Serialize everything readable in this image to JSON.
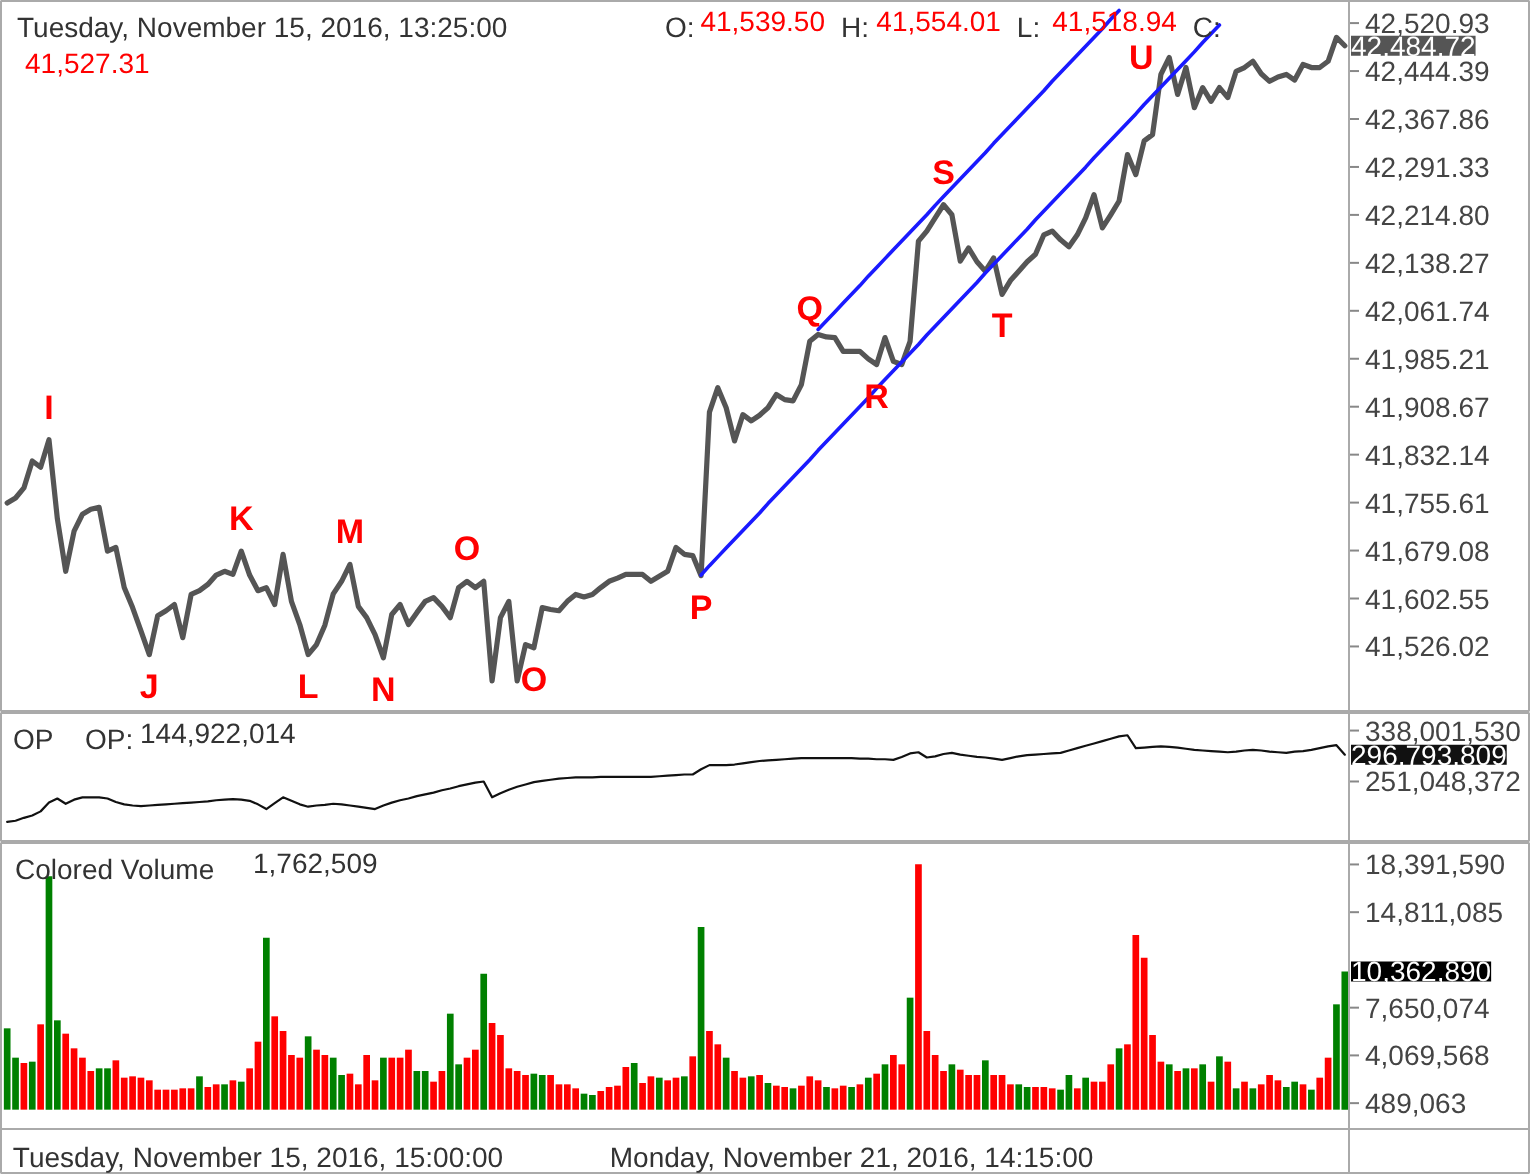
{
  "chart_data": [
    {
      "type": "line",
      "title": "Tuesday, November 15, 2016, 13:25:00",
      "annotations": [
        "O: 41,539.50",
        "H: 41,554.01",
        "L: 41,518.94",
        "C: 41,527.31"
      ],
      "categories": [
        null,
        null,
        null,
        null,
        null,
        null,
        null,
        null,
        null,
        null,
        null,
        null,
        null,
        null,
        null,
        null,
        null,
        null,
        null,
        null,
        null,
        null,
        null,
        null,
        null,
        null,
        null,
        null,
        null,
        null,
        null,
        null,
        null,
        null,
        null,
        null,
        null,
        null,
        null,
        null,
        null,
        null,
        null,
        null,
        null,
        null,
        null,
        null,
        null,
        null,
        null,
        null,
        null,
        null,
        null,
        null,
        null,
        null,
        null,
        null,
        null,
        null,
        null,
        null,
        null,
        null,
        null,
        null,
        null,
        null,
        null,
        null,
        null,
        null,
        null,
        null,
        null,
        null,
        null,
        null,
        null,
        null,
        null,
        null,
        null,
        null,
        null,
        null,
        null,
        null,
        null,
        null,
        null,
        null,
        null,
        null,
        null,
        null,
        null,
        null,
        null,
        null,
        null,
        null,
        null,
        null,
        null,
        null,
        null,
        null,
        null,
        null,
        null,
        null,
        null,
        null,
        null,
        null,
        null,
        null,
        null,
        null,
        null,
        null,
        null,
        null,
        null,
        null,
        null,
        null,
        null,
        null,
        null,
        null,
        null,
        null,
        null,
        null,
        null,
        null,
        null,
        null,
        null,
        null,
        null,
        null,
        null,
        null,
        null,
        null,
        null,
        null,
        null,
        null,
        null,
        null,
        null,
        null,
        null,
        null,
        null
      ],
      "series": [
        {
          "color": "#555555",
          "values": [
            41755,
            41763,
            41779,
            41822,
            41812,
            41856,
            41730,
            41646,
            41710,
            41737,
            41745,
            41748,
            41678,
            41684,
            41620,
            41588,
            41551,
            41513,
            41575,
            41583,
            41593,
            41540,
            41609,
            41615,
            41625,
            41640,
            41646,
            41641,
            41678,
            41640,
            41615,
            41620,
            41593,
            41673,
            41598,
            41561,
            41513,
            41529,
            41560,
            41610,
            41630,
            41657,
            41590,
            41572,
            41545,
            41508,
            41577,
            41593,
            41561,
            41580,
            41598,
            41604,
            41590,
            41572,
            41620,
            41630,
            41620,
            41630,
            41471,
            41572,
            41598,
            41471,
            41529,
            41524,
            41588,
            41585,
            41583,
            41598,
            41609,
            41605,
            41609,
            41620,
            41630,
            41635,
            41641,
            41641,
            41641,
            41630,
            41638,
            41646,
            41684,
            41673,
            41671,
            41639,
            41900,
            41939,
            41907,
            41854,
            41896,
            41886,
            41895,
            41907,
            41928,
            41920,
            41918,
            41944,
            42013,
            42024,
            42020,
            42019,
            41997,
            41997,
            41997,
            41985,
            41976,
            42019,
            41981,
            41976,
            42013,
            42173,
            42189,
            42210,
            42231,
            42215,
            42141,
            42162,
            42140,
            42125,
            42146,
            42088,
            42110,
            42125,
            42140,
            42152,
            42183,
            42189,
            42175,
            42164,
            42183,
            42210,
            42247,
            42194,
            42215,
            42237,
            42311,
            42279,
            42333,
            42343,
            42439,
            42466,
            42407,
            42450,
            42386,
            42418,
            42396,
            42418,
            42402,
            42444,
            42450,
            42460,
            42440,
            42428,
            42435,
            42439,
            42430,
            42455,
            42450,
            42450,
            42460,
            42498,
            42484.72
          ],
          "value_labels": [
            null,
            null,
            null,
            null,
            null,
            "I",
            null,
            null,
            null,
            null,
            null,
            null,
            null,
            null,
            null,
            null,
            null,
            "J",
            null,
            null,
            null,
            null,
            null,
            null,
            null,
            null,
            null,
            null,
            "K",
            null,
            null,
            null,
            null,
            null,
            null,
            null,
            "L",
            null,
            null,
            null,
            null,
            "M",
            null,
            null,
            null,
            "N",
            null,
            null,
            null,
            null,
            null,
            null,
            null,
            null,
            null,
            "O",
            null,
            null,
            null,
            null,
            null,
            null,
            null,
            "O",
            null,
            null,
            null,
            null,
            null,
            null,
            null,
            null,
            null,
            null,
            null,
            null,
            null,
            null,
            null,
            null,
            null,
            null,
            null,
            "P",
            null,
            null,
            null,
            null,
            null,
            null,
            null,
            null,
            null,
            null,
            null,
            null,
            "Q",
            null,
            null,
            null,
            null,
            null,
            null,
            null,
            "R",
            null,
            null,
            null,
            null,
            null,
            null,
            null,
            "S",
            null,
            null,
            null,
            null,
            null,
            null,
            "T",
            null,
            null,
            null,
            null,
            null,
            null,
            null,
            null,
            null,
            null,
            null,
            null,
            null,
            null,
            null,
            null,
            null,
            null,
            null,
            "U",
            null,
            null,
            null,
            null,
            null,
            null,
            null,
            null,
            null,
            null,
            null,
            null,
            null,
            null,
            null,
            null,
            null,
            null,
            null,
            null,
            "42,484.72"
          ]
        },
        {
          "type": "line",
          "color": "#1a1aff",
          "values": [
            null,
            null,
            null,
            null,
            null,
            null,
            null,
            null,
            null,
            null,
            null,
            null,
            null,
            null,
            null,
            null,
            null,
            null,
            null,
            null,
            null,
            null,
            null,
            null,
            null,
            null,
            null,
            null,
            null,
            null,
            null,
            null,
            null,
            null,
            null,
            null,
            null,
            null,
            null,
            null,
            null,
            null,
            null,
            null,
            null,
            null,
            null,
            null,
            null,
            null,
            null,
            null,
            null,
            null,
            null,
            null,
            null,
            null,
            null,
            null,
            null,
            null,
            null,
            null,
            null,
            null,
            null,
            null,
            null,
            null,
            null,
            null,
            null,
            null,
            null,
            null,
            null,
            null,
            null,
            null,
            null,
            null,
            null,
            41640,
            41655,
            41669,
            41683,
            41697,
            41711,
            41725,
            41739,
            41754,
            41768,
            41782,
            41796,
            41810,
            41824,
            41839,
            41853,
            41867,
            41881,
            41895,
            41909,
            41923,
            41938,
            41952,
            41966,
            41980,
            41994,
            42008,
            42023,
            42037,
            42051,
            42065,
            42079,
            42093,
            42107,
            42122,
            42136,
            42150,
            42164,
            42178,
            42192,
            42207,
            42221,
            42235,
            42249,
            42263,
            42277,
            42291,
            42306,
            42320,
            42334,
            42348,
            42362,
            42376,
            42391,
            42405,
            42419,
            42433,
            42447,
            42461,
            42475,
            42490,
            42504,
            42518,
            null,
            null,
            null,
            null,
            null,
            null,
            null,
            null,
            null,
            null,
            null,
            null,
            null,
            null,
            null
          ]
        },
        {
          "type": "line",
          "color": "#1a1aff",
          "values": [
            null,
            null,
            null,
            null,
            null,
            null,
            null,
            null,
            null,
            null,
            null,
            null,
            null,
            null,
            null,
            null,
            null,
            null,
            null,
            null,
            null,
            null,
            null,
            null,
            null,
            null,
            null,
            null,
            null,
            null,
            null,
            null,
            null,
            null,
            null,
            null,
            null,
            null,
            null,
            null,
            null,
            null,
            null,
            null,
            null,
            null,
            null,
            null,
            null,
            null,
            null,
            null,
            null,
            null,
            null,
            null,
            null,
            null,
            null,
            null,
            null,
            null,
            null,
            null,
            null,
            null,
            null,
            null,
            null,
            null,
            null,
            null,
            null,
            null,
            null,
            null,
            null,
            null,
            null,
            null,
            null,
            null,
            null,
            null,
            null,
            null,
            null,
            null,
            null,
            null,
            null,
            null,
            null,
            null,
            null,
            null,
            null,
            42032,
            42046,
            42060,
            42074,
            42088,
            42102,
            42117,
            42131,
            42145,
            42159,
            42173,
            42187,
            42201,
            42215,
            42230,
            42244,
            42258,
            42272,
            42286,
            42300,
            42314,
            42329,
            42343,
            42357,
            42371,
            42385,
            42399,
            42413,
            42428,
            42442,
            42456,
            42470,
            42484,
            42498,
            42512,
            42527,
            42541,
            null,
            null,
            null,
            null,
            null,
            null,
            null,
            null,
            null,
            null,
            null,
            null,
            null,
            null,
            null,
            null,
            null,
            null,
            null,
            null,
            null,
            null,
            null,
            null,
            null,
            null,
            null
          ]
        }
      ],
      "ylim": [
        41423,
        42553
      ],
      "yticks": [
        {
          "value": 42520.93,
          "label": "42,520.93"
        },
        {
          "value": 42444.39,
          "label": "42,444.39"
        },
        {
          "value": 42367.86,
          "label": "42,367.86"
        },
        {
          "value": 42291.33,
          "label": "42,291.33"
        },
        {
          "value": 42214.8,
          "label": "42,214.80"
        },
        {
          "value": 42138.27,
          "label": "42,138.27"
        },
        {
          "value": 42061.74,
          "label": "42,061.74"
        },
        {
          "value": 41985.21,
          "label": "41,985.21"
        },
        {
          "value": 41908.67,
          "label": "41,908.67"
        },
        {
          "value": 41832.14,
          "label": "41,832.14"
        },
        {
          "value": 41755.61,
          "label": "41,755.61"
        },
        {
          "value": 41679.08,
          "label": "41,679.08"
        },
        {
          "value": 41602.55,
          "label": "41,602.55"
        },
        {
          "value": 41526.02,
          "label": "41,526.02"
        }
      ]
    },
    {
      "type": "line",
      "title": "OP",
      "annotations": [
        "OP: 144,922,014"
      ],
      "categories": [
        null,
        null,
        null,
        null,
        null,
        null,
        null,
        null,
        null,
        null,
        null,
        null,
        null,
        null,
        null,
        null,
        null,
        null,
        null,
        null,
        null,
        null,
        null,
        null,
        null,
        null,
        null,
        null,
        null,
        null,
        null,
        null,
        null,
        null,
        null,
        null,
        null,
        null,
        null,
        null,
        null,
        null,
        null,
        null,
        null,
        null,
        null,
        null,
        null,
        null,
        null,
        null,
        null,
        null,
        null,
        null,
        null,
        null,
        null,
        null,
        null,
        null,
        null,
        null,
        null,
        null,
        null,
        null,
        null,
        null,
        null,
        null,
        null,
        null,
        null,
        null,
        null,
        null,
        null,
        null,
        null,
        null,
        null,
        null,
        null,
        null,
        null,
        null,
        null,
        null,
        null,
        null,
        null,
        null,
        null,
        null,
        null,
        null,
        null,
        null,
        null,
        null,
        null,
        null,
        null,
        null,
        null,
        null,
        null,
        null,
        null,
        null,
        null,
        null,
        null,
        null,
        null,
        null,
        null,
        null,
        null,
        null,
        null,
        null,
        null,
        null,
        null,
        null,
        null,
        null,
        null,
        null,
        null,
        null,
        null,
        null,
        null,
        null,
        null,
        null,
        null,
        null,
        null,
        null,
        null,
        null,
        null,
        null,
        null,
        null,
        null,
        null,
        null,
        null,
        null,
        null,
        null,
        null,
        null,
        null,
        null
      ],
      "series": [
        {
          "color": "#111111",
          "values": [
            182000000,
            184000000,
            189000000,
            193000000,
            200000000,
            215000000,
            222000000,
            213000000,
            220000000,
            224000000,
            224000000,
            224000000,
            222000000,
            216000000,
            212000000,
            210000000,
            209000000,
            210000000,
            211000000,
            212000000,
            213000000,
            214000000,
            215000000,
            216000000,
            217000000,
            219000000,
            220000000,
            221000000,
            220000000,
            218000000,
            212000000,
            204000000,
            214000000,
            224000000,
            218000000,
            212000000,
            208000000,
            210000000,
            211000000,
            213000000,
            212000000,
            210000000,
            208000000,
            206000000,
            204000000,
            210000000,
            215000000,
            219000000,
            222000000,
            226000000,
            229000000,
            232000000,
            236000000,
            239000000,
            243000000,
            246000000,
            249000000,
            251000000,
            224000000,
            231000000,
            237000000,
            242000000,
            246000000,
            250000000,
            252000000,
            254000000,
            256000000,
            257000000,
            258000000,
            258000000,
            258000000,
            259000000,
            259000000,
            259000000,
            259000000,
            259000000,
            259000000,
            259000000,
            260000000,
            261000000,
            262000000,
            263000000,
            263000000,
            272000000,
            279000000,
            279000000,
            279000000,
            280000000,
            282000000,
            284000000,
            286000000,
            287000000,
            288000000,
            289000000,
            290000000,
            291000000,
            291000000,
            291000000,
            291000000,
            291000000,
            291000000,
            291000000,
            290000000,
            290000000,
            289000000,
            289000000,
            288000000,
            293000000,
            299000000,
            301000000,
            292000000,
            294000000,
            298000000,
            300000000,
            297000000,
            295000000,
            293000000,
            292000000,
            290000000,
            288000000,
            291000000,
            294000000,
            296000000,
            297000000,
            298000000,
            299000000,
            300000000,
            304000000,
            308000000,
            312000000,
            316000000,
            320000000,
            324000000,
            328000000,
            330000000,
            308000000,
            309000000,
            310000000,
            311000000,
            310000000,
            309000000,
            307000000,
            305000000,
            304000000,
            303000000,
            302000000,
            301000000,
            302000000,
            304000000,
            305000000,
            304000000,
            302000000,
            301000000,
            300000000,
            302000000,
            303000000,
            305000000,
            308000000,
            311000000,
            313000000,
            296793809
          ],
          "value_labels": [
            null,
            null,
            null,
            null,
            null,
            null,
            null,
            null,
            null,
            null,
            null,
            null,
            null,
            null,
            null,
            null,
            null,
            null,
            null,
            null,
            null,
            null,
            null,
            null,
            null,
            null,
            null,
            null,
            null,
            null,
            null,
            null,
            null,
            null,
            null,
            null,
            null,
            null,
            null,
            null,
            null,
            null,
            null,
            null,
            null,
            null,
            null,
            null,
            null,
            null,
            null,
            null,
            null,
            null,
            null,
            null,
            null,
            null,
            null,
            null,
            null,
            null,
            null,
            null,
            null,
            null,
            null,
            null,
            null,
            null,
            null,
            null,
            null,
            null,
            null,
            null,
            null,
            null,
            null,
            null,
            null,
            null,
            null,
            null,
            null,
            null,
            null,
            null,
            null,
            null,
            null,
            null,
            null,
            null,
            null,
            null,
            null,
            null,
            null,
            null,
            null,
            null,
            null,
            null,
            null,
            null,
            null,
            null,
            null,
            null,
            null,
            null,
            null,
            null,
            null,
            null,
            null,
            null,
            null,
            null,
            null,
            null,
            null,
            null,
            null,
            null,
            null,
            null,
            null,
            null,
            null,
            null,
            null,
            null,
            null,
            null,
            null,
            null,
            null,
            null,
            null,
            null,
            null,
            null,
            null,
            null,
            null,
            null,
            null,
            null,
            null,
            null,
            null,
            null,
            null,
            null,
            null,
            null,
            null,
            null,
            "296,793,809"
          ]
        }
      ],
      "ylim": [
        146000000,
        368000000
      ],
      "yticks": [
        {
          "value": 338001530,
          "label": "338,001,530"
        },
        {
          "value": 251048372,
          "label": "251,048,372"
        }
      ]
    },
    {
      "type": "bar",
      "title": "Colored Volume",
      "annotations": [
        "1,762,509",
        "10,362,890"
      ],
      "categories": [
        null,
        null,
        null,
        null,
        null,
        null,
        null,
        null,
        null,
        null,
        null,
        null,
        null,
        null,
        null,
        null,
        null,
        null,
        null,
        null,
        null,
        null,
        null,
        null,
        null,
        null,
        null,
        null,
        null,
        null,
        "Tuesday, November 15, 2016, 15:00:00",
        null,
        null,
        null,
        null,
        null,
        null,
        null,
        null,
        null,
        null,
        null,
        null,
        null,
        null,
        null,
        null,
        null,
        null,
        null,
        null,
        null,
        null,
        null,
        null,
        null,
        null,
        null,
        null,
        null,
        null,
        null,
        null,
        null,
        null,
        null,
        null,
        null,
        null,
        null,
        null,
        null,
        null,
        null,
        null,
        null,
        null,
        null,
        null,
        null,
        null,
        null,
        null,
        null,
        null,
        null,
        null,
        null,
        null,
        null,
        null,
        null,
        null,
        null,
        null,
        null,
        null,
        null,
        null,
        null,
        null,
        "Monday, November 21, 2016, 14:15:00",
        null,
        null,
        null,
        null,
        null,
        null,
        null,
        null,
        null,
        null,
        null,
        null,
        null,
        null,
        null,
        null,
        null,
        null,
        null,
        null,
        null,
        null,
        null,
        null,
        null,
        null,
        null,
        null,
        null,
        null,
        null,
        null,
        null,
        null,
        null,
        null,
        null,
        null,
        null,
        null,
        null,
        null,
        null,
        null,
        null,
        null,
        null,
        null,
        null,
        null,
        null,
        null,
        null,
        null,
        null,
        null,
        null,
        null,
        null
      ],
      "values": [
        6100000,
        3900000,
        3500000,
        3600000,
        6400000,
        17500000,
        6700000,
        5700000,
        4600000,
        3900000,
        2900000,
        3100000,
        3100000,
        3700000,
        2400000,
        2500000,
        2400000,
        2200000,
        1500000,
        1500000,
        1500000,
        1600000,
        1600000,
        2500000,
        1700000,
        1900000,
        1900000,
        2200000,
        2100000,
        3100000,
        5100000,
        12900000,
        7000000,
        5900000,
        4100000,
        3900000,
        5500000,
        4500000,
        4100000,
        3900000,
        2600000,
        2700000,
        1900000,
        4100000,
        2200000,
        3900000,
        3900000,
        3900000,
        4500000,
        2900000,
        2900000,
        2100000,
        2900000,
        7200000,
        3400000,
        3900000,
        4500000,
        10200000,
        6500000,
        5600000,
        3100000,
        2900000,
        2600000,
        2700000,
        2600000,
        2600000,
        1900000,
        1900000,
        1600000,
        1200000,
        1100000,
        1400000,
        1700000,
        1800000,
        3200000,
        3500000,
        2000000,
        2500000,
        2400000,
        2200000,
        2400000,
        2500000,
        4000000,
        13700000,
        5900000,
        4900000,
        3900000,
        2900000,
        2400000,
        2500000,
        2600000,
        2000000,
        1800000,
        1700000,
        1600000,
        1800000,
        2500000,
        2200000,
        1700000,
        1600000,
        1800000,
        1700000,
        1900000,
        2400000,
        2700000,
        3400000,
        4100000,
        3400000,
        8400000,
        18400000,
        5900000,
        4100000,
        2900000,
        3400000,
        3000000,
        2600000,
        2600000,
        3700000,
        2600000,
        2600000,
        1900000,
        1900000,
        1700000,
        1700000,
        1700000,
        1600000,
        1500000,
        2600000,
        1600000,
        2400000,
        2100000,
        2100000,
        3400000,
        4600000,
        4900000,
        13100000,
        11400000,
        5600000,
        3600000,
        3400000,
        2900000,
        3100000,
        3100000,
        3400000,
        2100000,
        4000000,
        3600000,
        1600000,
        2100000,
        1600000,
        1900000,
        2600000,
        2200000,
        1700000,
        2100000,
        1900000,
        1500000,
        2400000,
        3900000,
        7900000,
        10362890
      ],
      "colors": [
        "#008000",
        "#008000",
        "#ff0000",
        "#008000",
        "#ff0000",
        "#008000",
        "#008000",
        "#ff0000",
        "#ff0000",
        "#ff0000",
        "#ff0000",
        "#008000",
        "#008000",
        "#ff0000",
        "#ff0000",
        "#ff0000",
        "#ff0000",
        "#ff0000",
        "#ff0000",
        "#ff0000",
        "#ff0000",
        "#ff0000",
        "#ff0000",
        "#008000",
        "#ff0000",
        "#ff0000",
        "#008000",
        "#ff0000",
        "#008000",
        "#ff0000",
        "#ff0000",
        "#008000",
        "#ff0000",
        "#ff0000",
        "#ff0000",
        "#ff0000",
        "#008000",
        "#ff0000",
        "#ff0000",
        "#008000",
        "#008000",
        "#ff0000",
        "#ff0000",
        "#ff0000",
        "#ff0000",
        "#008000",
        "#ff0000",
        "#ff0000",
        "#ff0000",
        "#008000",
        "#008000",
        "#ff0000",
        "#ff0000",
        "#008000",
        "#008000",
        "#ff0000",
        "#ff0000",
        "#008000",
        "#ff0000",
        "#ff0000",
        "#ff0000",
        "#ff0000",
        "#ff0000",
        "#008000",
        "#008000",
        "#ff0000",
        "#ff0000",
        "#ff0000",
        "#ff0000",
        "#008000",
        "#008000",
        "#ff0000",
        "#ff0000",
        "#ff0000",
        "#ff0000",
        "#008000",
        "#ff0000",
        "#ff0000",
        "#008000",
        "#ff0000",
        "#ff0000",
        "#008000",
        "#ff0000",
        "#008000",
        "#ff0000",
        "#ff0000",
        "#008000",
        "#ff0000",
        "#ff0000",
        "#008000",
        "#ff0000",
        "#008000",
        "#ff0000",
        "#ff0000",
        "#008000",
        "#ff0000",
        "#ff0000",
        "#ff0000",
        "#008000",
        "#ff0000",
        "#ff0000",
        "#008000",
        "#ff0000",
        "#008000",
        "#ff0000",
        "#008000",
        "#ff0000",
        "#ff0000",
        "#008000",
        "#ff0000",
        "#ff0000",
        "#ff0000",
        "#ff0000",
        "#008000",
        "#ff0000",
        "#ff0000",
        "#ff0000",
        "#008000",
        "#ff0000",
        "#ff0000",
        "#ff0000",
        "#008000",
        "#008000",
        "#ff0000",
        "#ff0000",
        "#ff0000",
        "#008000",
        "#008000",
        "#ff0000",
        "#008000",
        "#ff0000",
        "#ff0000",
        "#ff0000",
        "#008000",
        "#ff0000",
        "#ff0000",
        "#ff0000",
        "#ff0000",
        "#ff0000",
        "#008000",
        "#ff0000",
        "#008000",
        "#ff0000",
        "#008000",
        "#ff0000",
        "#008000",
        "#ff0000",
        "#008000",
        "#ff0000",
        "#008000",
        "#ff0000",
        "#ff0000",
        "#ff0000",
        "#008000",
        "#008000",
        "#ff0000",
        "#008000",
        "#ff0000",
        "#ff0000",
        "#008000",
        "#008000"
      ],
      "ylim": [
        -1450000,
        20000000
      ],
      "yticks": [
        {
          "value": 18391590,
          "label": "18,391,590"
        },
        {
          "value": 14811085,
          "label": "14,811,085"
        },
        {
          "value": 7650074,
          "label": "7,650,074"
        },
        {
          "value": 4069568,
          "label": "4,069,568"
        },
        {
          "value": 489063,
          "label": "489,063"
        }
      ]
    }
  ]
}
